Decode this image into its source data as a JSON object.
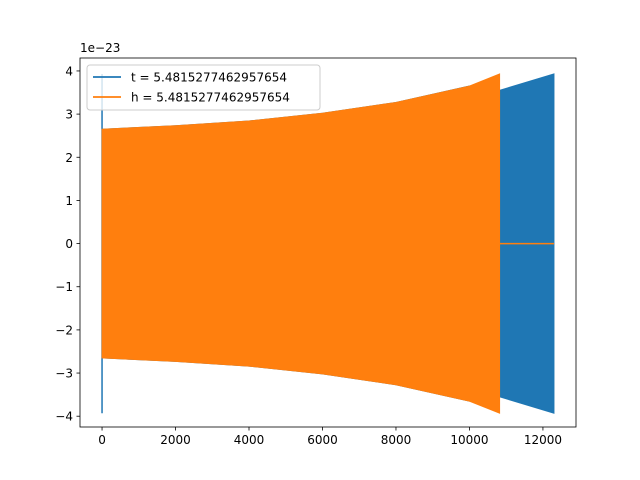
{
  "chart_data": {
    "type": "line",
    "title": "",
    "xlabel": "",
    "ylabel": "",
    "y_offset_text": "1e−23",
    "xlim": [
      -600,
      12900
    ],
    "ylim": [
      -4.25,
      4.3
    ],
    "x_ticks": [
      0,
      2000,
      4000,
      6000,
      8000,
      10000,
      12000
    ],
    "x_tick_labels": [
      "0",
      "2000",
      "4000",
      "6000",
      "8000",
      "10000",
      "12000"
    ],
    "y_ticks": [
      -4,
      -3,
      -2,
      -1,
      0,
      1,
      2,
      3,
      4
    ],
    "y_tick_labels": [
      "−4",
      "−3",
      "−2",
      "−1",
      "0",
      "1",
      "2",
      "3",
      "4"
    ],
    "grid": false,
    "legend_position": "upper-left",
    "series": [
      {
        "name": "t = 5.4815277462957654",
        "color": "#1f77b4",
        "kind": "oscillation-envelope",
        "initial_spike": {
          "x": 0,
          "ymin": -3.93,
          "ymax": 3.93
        },
        "x": [
          0,
          2000,
          4000,
          6000,
          8000,
          10000,
          10820,
          12300
        ],
        "upper": [
          2.65,
          2.73,
          2.84,
          3.02,
          3.27,
          3.65,
          3.55,
          3.93
        ],
        "lower": [
          -2.65,
          -2.73,
          -2.84,
          -3.02,
          -3.27,
          -3.65,
          -3.55,
          -3.93
        ]
      },
      {
        "name": "h = 5.4815277462957654",
        "color": "#ff7f0e",
        "kind": "oscillation-envelope",
        "x": [
          0,
          2000,
          4000,
          6000,
          8000,
          10000,
          10820
        ],
        "upper": [
          2.65,
          2.73,
          2.84,
          3.02,
          3.27,
          3.65,
          3.93
        ],
        "lower": [
          -2.65,
          -2.73,
          -2.84,
          -3.02,
          -3.27,
          -3.65,
          -3.93
        ],
        "flat_tail": {
          "x_start": 10820,
          "x_end": 12300,
          "y": 0
        }
      }
    ]
  }
}
